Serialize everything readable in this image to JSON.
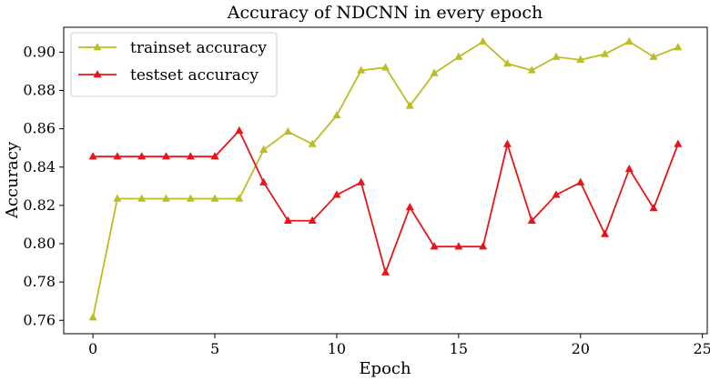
{
  "chart_data": {
    "type": "line",
    "title": "Accuracy of NDCNN in every epoch",
    "xlabel": "Epoch",
    "ylabel": "Accuracy",
    "xlim": [
      -1.2,
      25.2
    ],
    "ylim": [
      0.753,
      0.913
    ],
    "xticks": [
      0,
      5,
      10,
      15,
      20,
      25
    ],
    "yticks": [
      0.76,
      0.78,
      0.8,
      0.82,
      0.84,
      0.86,
      0.88,
      0.9
    ],
    "xtick_labels": [
      "0",
      "5",
      "10",
      "15",
      "20",
      "25"
    ],
    "ytick_labels": [
      "0.76",
      "0.78",
      "0.80",
      "0.82",
      "0.84",
      "0.86",
      "0.88",
      "0.90"
    ],
    "grid": false,
    "legend_position": "top-left",
    "x": [
      0,
      1,
      2,
      3,
      4,
      5,
      6,
      7,
      8,
      9,
      10,
      11,
      12,
      13,
      14,
      15,
      16,
      17,
      18,
      19,
      20,
      21,
      22,
      23,
      24
    ],
    "series": [
      {
        "name": "trainset accuracy",
        "color": "#bcbd22",
        "marker": "triangle",
        "values": [
          0.7615,
          0.8235,
          0.8235,
          0.8235,
          0.8235,
          0.8235,
          0.8235,
          0.849,
          0.8585,
          0.852,
          0.867,
          0.8905,
          0.892,
          0.872,
          0.889,
          0.8975,
          0.9055,
          0.894,
          0.8905,
          0.8975,
          0.896,
          0.899,
          0.9055,
          0.8975,
          0.9025
        ]
      },
      {
        "name": "testset accuracy",
        "color": "#e8141a",
        "marker": "triangle",
        "values": [
          0.8455,
          0.8455,
          0.8455,
          0.8455,
          0.8455,
          0.8455,
          0.859,
          0.832,
          0.812,
          0.812,
          0.8255,
          0.832,
          0.785,
          0.819,
          0.7985,
          0.7985,
          0.7985,
          0.852,
          0.812,
          0.8255,
          0.832,
          0.805,
          0.839,
          0.8185,
          0.852
        ]
      }
    ]
  }
}
